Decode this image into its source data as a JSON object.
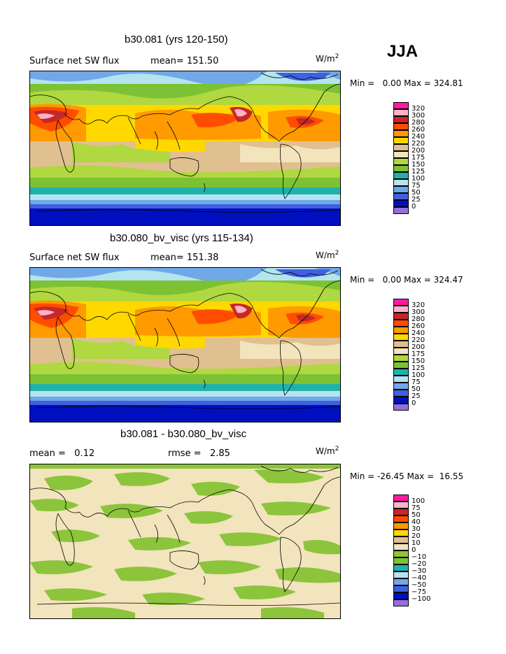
{
  "season": "JJA",
  "units": "W/m",
  "units_exp": "2",
  "panels": [
    {
      "title": "b30.081 (yrs 120-150)",
      "left_label": "Surface net SW flux",
      "right_label": "mean= 151.50",
      "minmax": "Min =   0.00 Max = 324.81",
      "kind": "field"
    },
    {
      "title": "b30.080_bv_visc (yrs 115-134)",
      "left_label": "Surface net SW flux",
      "right_label": "mean= 151.38",
      "minmax": "Min =   0.00 Max = 324.47",
      "kind": "field"
    },
    {
      "title": "b30.081 - b30.080_bv_visc",
      "left_label": "mean =   0.12",
      "right_label": "rmse =   2.85",
      "minmax": "Min = -26.45 Max =  16.55",
      "kind": "diff"
    }
  ],
  "colorbar_field": {
    "labels": [
      "320",
      "300",
      "280",
      "260",
      "240",
      "220",
      "200",
      "175",
      "150",
      "125",
      "100",
      "75",
      "50",
      "25",
      "0"
    ],
    "colors": [
      "#ff1aa3",
      "#ffb3c8",
      "#c62828",
      "#ff4d00",
      "#ff9a00",
      "#ffd800",
      "#e0c090",
      "#f2e4bc",
      "#b0d840",
      "#7cc234",
      "#20b2aa",
      "#b4e4ee",
      "#70a8e8",
      "#4060e0",
      "#0010c0",
      "#9370db"
    ]
  },
  "colorbar_diff": {
    "labels": [
      "100",
      "75",
      "50",
      "40",
      "30",
      "20",
      "10",
      "0",
      "−10",
      "−20",
      "−30",
      "−40",
      "−50",
      "−75",
      "−100"
    ],
    "colors": [
      "#ff1aa3",
      "#ffb3c8",
      "#c62828",
      "#ff4d00",
      "#ff9a00",
      "#ffd800",
      "#e0c090",
      "#f2e4bc",
      "#8cc43c",
      "#7cc234",
      "#20b2aa",
      "#b4e4ee",
      "#70a8e8",
      "#4060e0",
      "#0010c0",
      "#9370db"
    ]
  }
}
